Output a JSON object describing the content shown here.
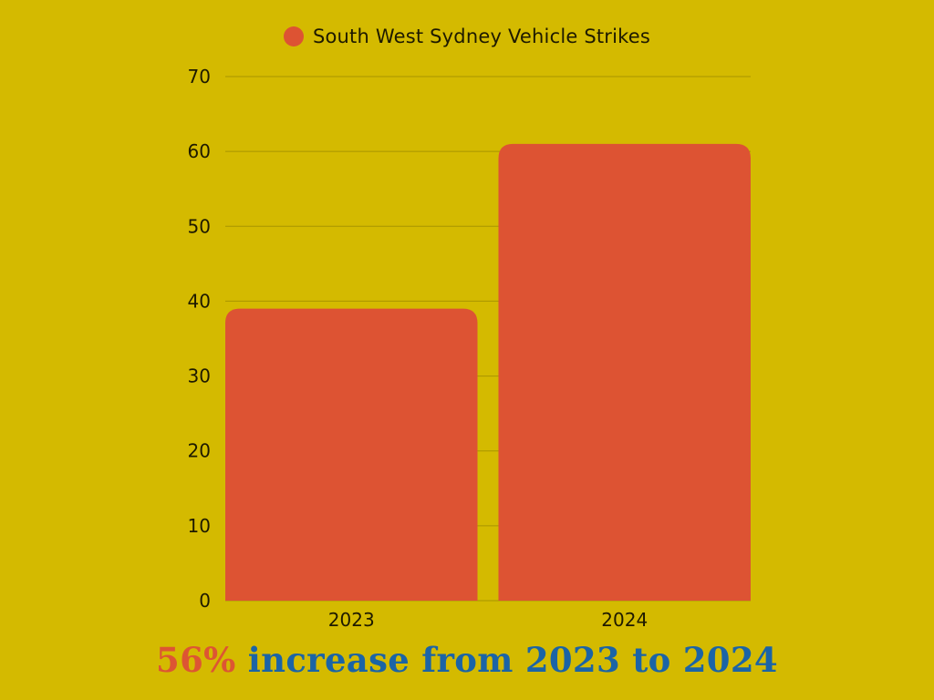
{
  "chart_data": {
    "type": "bar",
    "categories": [
      "2023",
      "2024"
    ],
    "series": [
      {
        "name": "South West Sydney Vehicle Strikes",
        "values": [
          39,
          61
        ]
      }
    ],
    "ylim": [
      0,
      70
    ],
    "yticks": [
      "0",
      "10",
      "20",
      "30",
      "40",
      "50",
      "60",
      "70"
    ],
    "grid": true,
    "legend_position": "top-center",
    "title": "",
    "xlabel": "",
    "ylabel": ""
  },
  "caption": {
    "highlight": "56%",
    "text": "increase from 2023 to 2024"
  },
  "colors": {
    "background": "#d4ba00",
    "bar": "#dd5333",
    "grid": "#a89400",
    "caption_highlight": "#dd5533",
    "caption_text": "#1b64a6"
  }
}
